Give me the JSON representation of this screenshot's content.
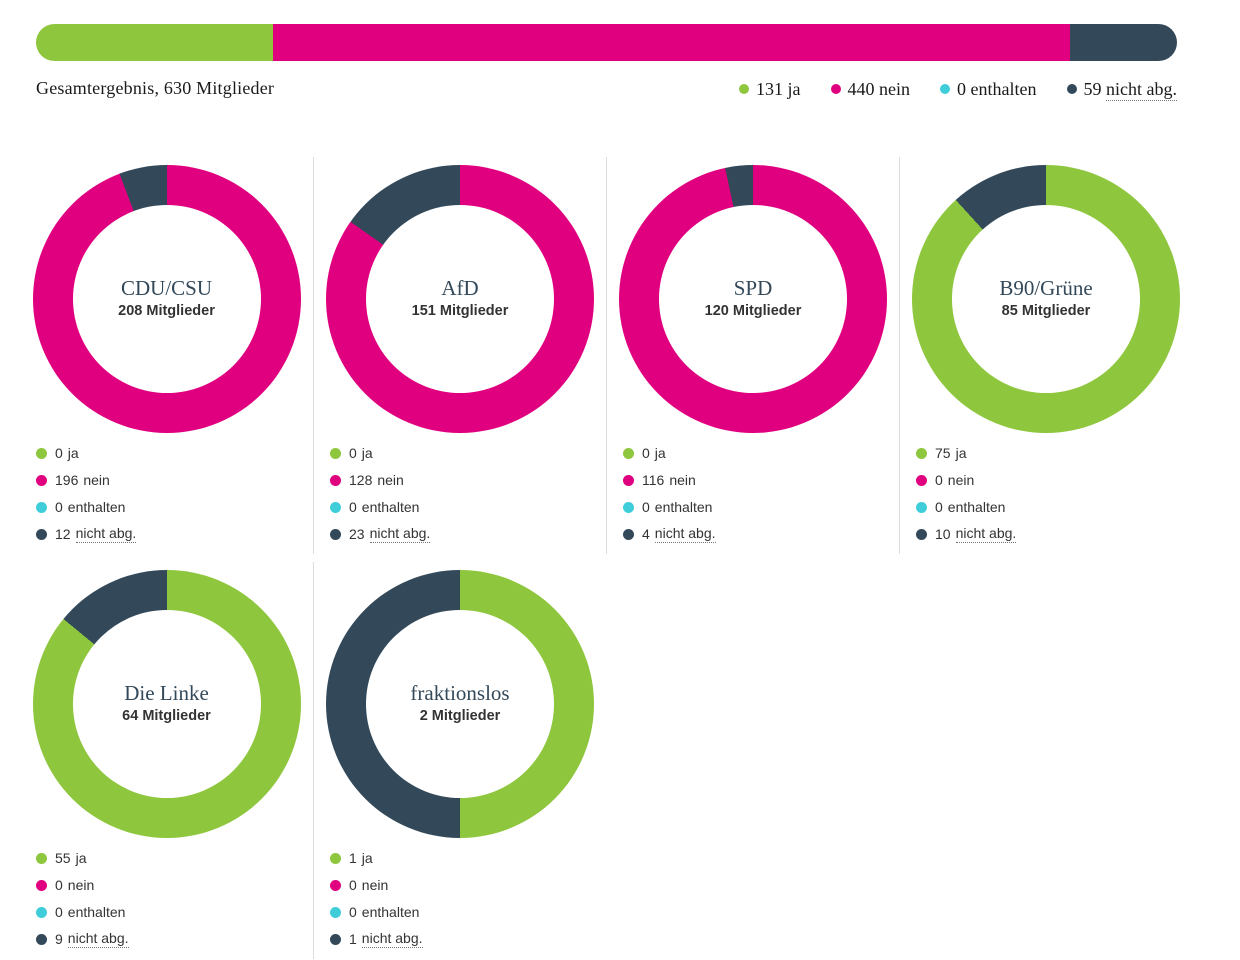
{
  "header": {
    "title": "Gesamtergebnis, 630 Mitglieder"
  },
  "colors": {
    "ja": "#8ec63d",
    "nein": "#e0007f",
    "enthalten": "#3fced9",
    "nicht_abg": "#33495a"
  },
  "chart_data": [
    {
      "type": "bar",
      "subtype": "horizontal_stacked",
      "title": "Gesamtergebnis, 630 Mitglieder",
      "total": 630,
      "series": [
        {
          "key": "ja",
          "label": "ja",
          "value": 131
        },
        {
          "key": "nein",
          "label": "nein",
          "value": 440
        },
        {
          "key": "enthalten",
          "label": "enthalten",
          "value": 0
        },
        {
          "key": "nicht_abg",
          "label": "nicht abg.",
          "value": 59
        }
      ],
      "legend": [
        {
          "key": "ja",
          "count": "131",
          "label": "ja"
        },
        {
          "key": "nein",
          "count": "440",
          "label": "nein"
        },
        {
          "key": "enthalten",
          "count": "0",
          "label": "enthalten"
        },
        {
          "key": "nicht_abg",
          "count": "59",
          "label": "nicht abg."
        }
      ]
    },
    {
      "type": "pie",
      "subtype": "donut",
      "party": "CDU/CSU",
      "members_label": "208 Mitglieder",
      "total": 208,
      "segments": [
        {
          "key": "ja",
          "value": 0
        },
        {
          "key": "nein",
          "value": 196
        },
        {
          "key": "enthalten",
          "value": 0
        },
        {
          "key": "nicht_abg",
          "value": 12
        }
      ],
      "legend": [
        {
          "key": "ja",
          "count": "0",
          "label": "ja"
        },
        {
          "key": "nein",
          "count": "196",
          "label": "nein"
        },
        {
          "key": "enthalten",
          "count": "0",
          "label": "enthalten"
        },
        {
          "key": "nicht_abg",
          "count": "12",
          "label": "nicht abg."
        }
      ]
    },
    {
      "type": "pie",
      "subtype": "donut",
      "party": "AfD",
      "members_label": "151 Mitglieder",
      "total": 151,
      "segments": [
        {
          "key": "ja",
          "value": 0
        },
        {
          "key": "nein",
          "value": 128
        },
        {
          "key": "enthalten",
          "value": 0
        },
        {
          "key": "nicht_abg",
          "value": 23
        }
      ],
      "legend": [
        {
          "key": "ja",
          "count": "0",
          "label": "ja"
        },
        {
          "key": "nein",
          "count": "128",
          "label": "nein"
        },
        {
          "key": "enthalten",
          "count": "0",
          "label": "enthalten"
        },
        {
          "key": "nicht_abg",
          "count": "23",
          "label": "nicht abg."
        }
      ]
    },
    {
      "type": "pie",
      "subtype": "donut",
      "party": "SPD",
      "members_label": "120 Mitglieder",
      "total": 120,
      "segments": [
        {
          "key": "ja",
          "value": 0
        },
        {
          "key": "nein",
          "value": 116
        },
        {
          "key": "enthalten",
          "value": 0
        },
        {
          "key": "nicht_abg",
          "value": 4
        }
      ],
      "legend": [
        {
          "key": "ja",
          "count": "0",
          "label": "ja"
        },
        {
          "key": "nein",
          "count": "116",
          "label": "nein"
        },
        {
          "key": "enthalten",
          "count": "0",
          "label": "enthalten"
        },
        {
          "key": "nicht_abg",
          "count": "4",
          "label": "nicht abg."
        }
      ]
    },
    {
      "type": "pie",
      "subtype": "donut",
      "party": "B90/Grüne",
      "members_label": "85 Mitglieder",
      "total": 85,
      "segments": [
        {
          "key": "ja",
          "value": 75
        },
        {
          "key": "nein",
          "value": 0
        },
        {
          "key": "enthalten",
          "value": 0
        },
        {
          "key": "nicht_abg",
          "value": 10
        }
      ],
      "legend": [
        {
          "key": "ja",
          "count": "75",
          "label": "ja"
        },
        {
          "key": "nein",
          "count": "0",
          "label": "nein"
        },
        {
          "key": "enthalten",
          "count": "0",
          "label": "enthalten"
        },
        {
          "key": "nicht_abg",
          "count": "10",
          "label": "nicht abg."
        }
      ]
    },
    {
      "type": "pie",
      "subtype": "donut",
      "party": "Die Linke",
      "members_label": "64 Mitglieder",
      "total": 64,
      "segments": [
        {
          "key": "ja",
          "value": 55
        },
        {
          "key": "nein",
          "value": 0
        },
        {
          "key": "enthalten",
          "value": 0
        },
        {
          "key": "nicht_abg",
          "value": 9
        }
      ],
      "legend": [
        {
          "key": "ja",
          "count": "55",
          "label": "ja"
        },
        {
          "key": "nein",
          "count": "0",
          "label": "nein"
        },
        {
          "key": "enthalten",
          "count": "0",
          "label": "enthalten"
        },
        {
          "key": "nicht_abg",
          "count": "9",
          "label": "nicht abg."
        }
      ]
    },
    {
      "type": "pie",
      "subtype": "donut",
      "party": "fraktionslos",
      "members_label": "2 Mitglieder",
      "total": 2,
      "segments": [
        {
          "key": "ja",
          "value": 1
        },
        {
          "key": "nein",
          "value": 0
        },
        {
          "key": "enthalten",
          "value": 0
        },
        {
          "key": "nicht_abg",
          "value": 1
        }
      ],
      "legend": [
        {
          "key": "ja",
          "count": "1",
          "label": "ja"
        },
        {
          "key": "nein",
          "count": "0",
          "label": "nein"
        },
        {
          "key": "enthalten",
          "count": "0",
          "label": "enthalten"
        },
        {
          "key": "nicht_abg",
          "count": "1",
          "label": "nicht abg."
        }
      ]
    }
  ]
}
